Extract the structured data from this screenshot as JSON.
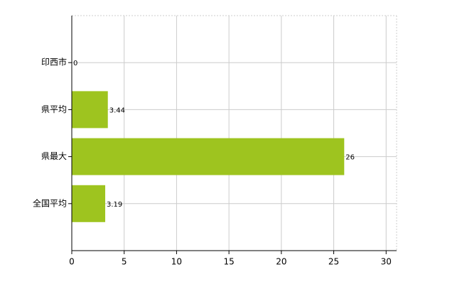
{
  "chart_data": {
    "type": "bar",
    "orientation": "horizontal",
    "categories": [
      "印西市",
      "県平均",
      "県最大",
      "全国平均"
    ],
    "values": [
      0,
      3.44,
      26,
      3.19
    ],
    "color": "#9ec41f",
    "xlim": [
      0,
      31
    ],
    "xticks": [
      0,
      5,
      10,
      15,
      20,
      25,
      30
    ],
    "grid": true
  }
}
